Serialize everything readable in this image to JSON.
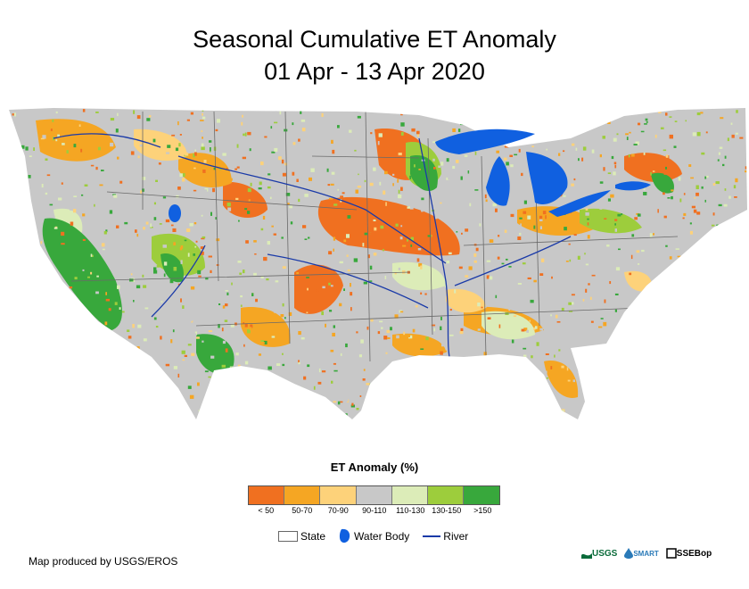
{
  "title": {
    "line1": "Seasonal Cumulative ET Anomaly",
    "line2": "01 Apr - 13 Apr 2020"
  },
  "legend": {
    "title": "ET Anomaly (%)",
    "classes": [
      {
        "label": "< 50",
        "color": "#f07020"
      },
      {
        "label": "50-70",
        "color": "#f5a623"
      },
      {
        "label": "70-90",
        "color": "#fdd27a"
      },
      {
        "label": "90-110",
        "color": "#c8c8c8"
      },
      {
        "label": "110-130",
        "color": "#dcecb8"
      },
      {
        "label": "130-150",
        "color": "#9dcd3c"
      },
      {
        "label": ">150",
        "color": "#38a83c"
      }
    ],
    "symbols": {
      "state": "State",
      "water_body": "Water Body",
      "river": "River"
    }
  },
  "colors": {
    "water": "#1060e0",
    "river": "#1a3aa8",
    "border": "#6a6a6a"
  },
  "credit": "Map produced by USGS/EROS",
  "logos": {
    "usgs": "USGS",
    "smart": "SMART",
    "ssebop": "SSEBop"
  }
}
